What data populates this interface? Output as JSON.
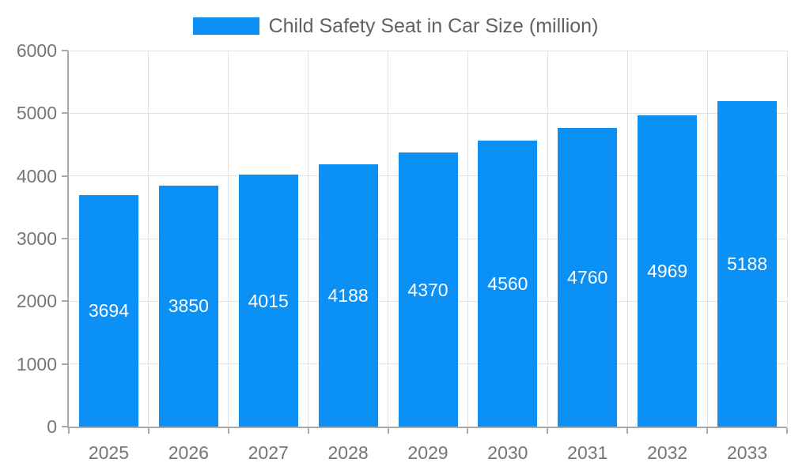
{
  "chart_data": {
    "type": "bar",
    "title": "Child Safety Seat in Car Size (million)",
    "categories": [
      "2025",
      "2026",
      "2027",
      "2028",
      "2029",
      "2030",
      "2031",
      "2032",
      "2033"
    ],
    "series": [
      {
        "name": "Child Safety Seat in Car Size (million)",
        "values": [
          3694,
          3850,
          4015,
          4188,
          4370,
          4560,
          4760,
          4969,
          5188
        ]
      }
    ],
    "values": [
      3694,
      3850,
      4015,
      4188,
      4370,
      4560,
      4760,
      4969,
      5188
    ],
    "xlabel": "",
    "ylabel": "",
    "ylim": [
      0,
      6000
    ],
    "yticks": [
      0,
      1000,
      2000,
      3000,
      4000,
      5000,
      6000
    ],
    "grid": true,
    "legend_position": "top-center",
    "value_label_style": "white, centered inside bar"
  },
  "colors": {
    "bar": "#0b90f5",
    "grid": "#e3e3e3",
    "axis": "#aaaaaa",
    "axis_text": "#757575",
    "legend_text": "#616161",
    "value_text": "#ffffff",
    "background": "#ffffff"
  }
}
